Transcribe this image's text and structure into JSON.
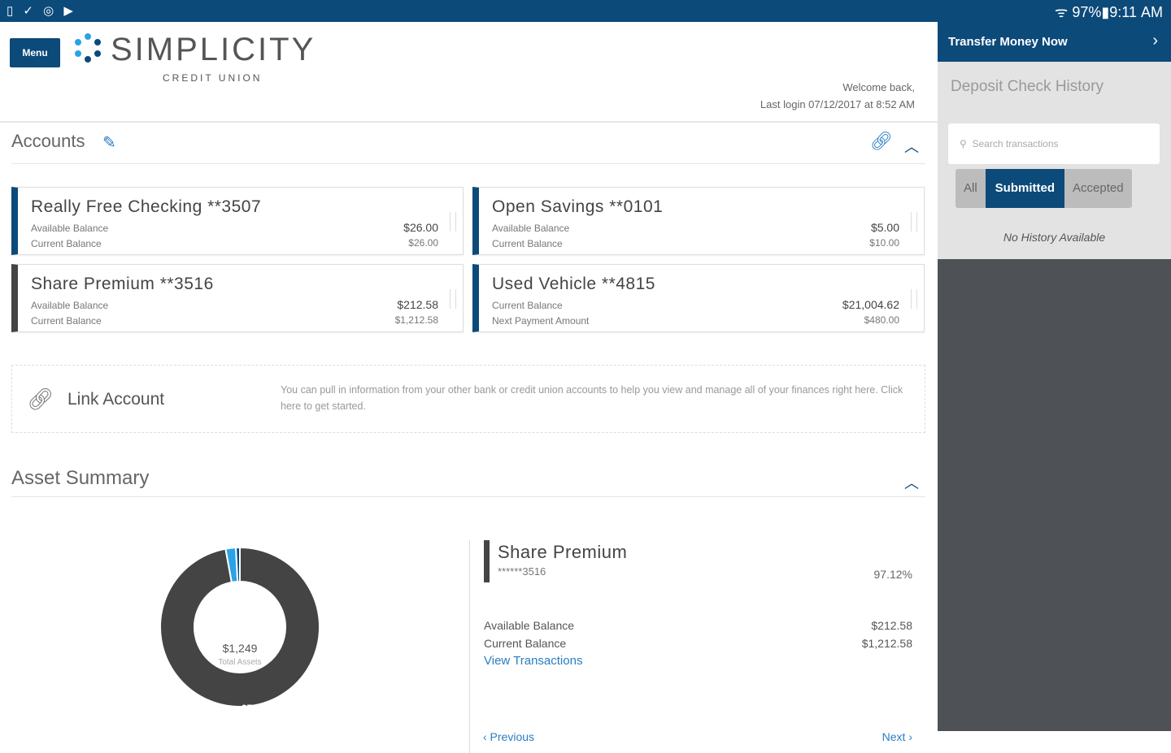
{
  "status_bar": {
    "left_icons": "▯ ✓ ◎ ▶",
    "battery": "97%",
    "time": "9:11 AM"
  },
  "header": {
    "menu_label": "Menu",
    "logo_name": "SIMPLICITY",
    "logo_sub": "CREDIT UNION",
    "welcome": "Welcome back,",
    "last_login": "Last login 07/12/2017 at 8:52 AM"
  },
  "accounts": {
    "title": "Accounts",
    "cards": [
      {
        "name": "Really Free Checking  **3507",
        "label1": "Available Balance",
        "label2": "Current Balance",
        "value1": "$26.00",
        "value2": "$26.00"
      },
      {
        "name": "Open Savings  **0101",
        "label1": "Available Balance",
        "label2": "Current Balance",
        "value1": "$5.00",
        "value2": "$10.00"
      },
      {
        "name": "Share Premium  **3516",
        "label1": "Available Balance",
        "label2": "Current Balance",
        "value1": "$212.58",
        "value2": "$1,212.58"
      },
      {
        "name": "Used Vehicle  **4815",
        "label1": "Current Balance",
        "label2": "Next Payment Amount",
        "value1": "$21,004.62",
        "value2": "$480.00"
      }
    ]
  },
  "link_account": {
    "label": "Link Account",
    "description": "You can pull in information from your other bank or credit union accounts to help you view and manage all of your finances right here. Click here to get started."
  },
  "asset_summary": {
    "title": "Asset Summary",
    "total": "$1,249",
    "total_label": "Total Assets",
    "slice_label": "97%",
    "slices": [
      {
        "name": "Share Premium",
        "percent": 97.12,
        "color": "#444444"
      },
      {
        "name": "Really Free Checking",
        "percent": 2.08,
        "color": "#2aa3e6"
      },
      {
        "name": "Open Savings",
        "percent": 0.8,
        "color": "#0c4a7a"
      }
    ],
    "detail": {
      "name": "Share Premium",
      "number": "******3516",
      "percent": "97.12%",
      "available_label": "Available Balance",
      "available": "$212.58",
      "current_label": "Current Balance",
      "current": "$1,212.58",
      "view_transactions": "View Transactions",
      "previous": "‹  Previous",
      "next": "Next  ›"
    }
  },
  "sidebar": {
    "transfer": "Transfer Money Now",
    "deposit_title": "Deposit Check History",
    "search_placeholder": "Search transactions",
    "filters": [
      "All",
      "Submitted",
      "Accepted"
    ],
    "empty": "No History Available"
  }
}
